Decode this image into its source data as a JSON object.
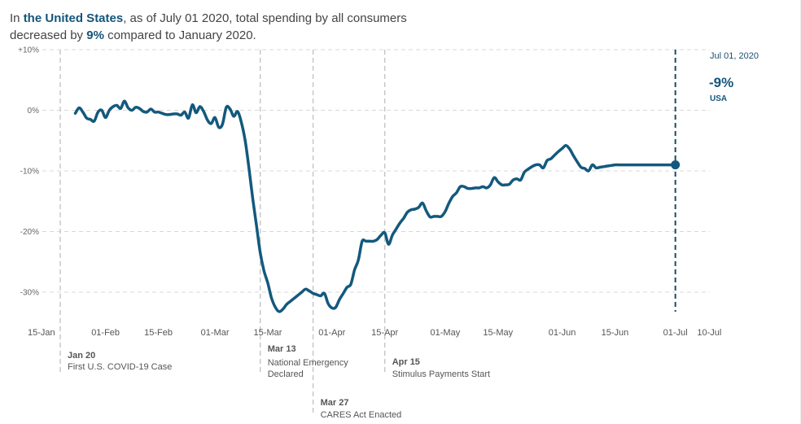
{
  "headline": {
    "prefix": "In ",
    "region": "the United States",
    "middle": ", as of July 01 2020, total spending by all consumers",
    "line2_prefix": "decreased by ",
    "change": "9%",
    "line2_suffix": " compared to January 2020."
  },
  "chart_data": {
    "type": "line",
    "title": "Total spending by all consumers, change vs January 2020",
    "xlabel": "",
    "ylabel": "",
    "ylim": [
      -36,
      10
    ],
    "y_ticks": [
      10,
      0,
      -10,
      -20,
      -30
    ],
    "y_tick_labels": [
      "+10%",
      "0%",
      "-10%",
      "-20%",
      "-30%"
    ],
    "x_range_days_from_jan20": [
      -5,
      172
    ],
    "x_ticks": [
      {
        "day": -5,
        "label": "15-Jan"
      },
      {
        "day": 12,
        "label": "01-Feb"
      },
      {
        "day": 26,
        "label": "15-Feb"
      },
      {
        "day": 41,
        "label": "01-Mar"
      },
      {
        "day": 55,
        "label": "15-Mar"
      },
      {
        "day": 72,
        "label": "01-Apr"
      },
      {
        "day": 86,
        "label": "15-Apr"
      },
      {
        "day": 102,
        "label": "01-May"
      },
      {
        "day": 116,
        "label": "15-May"
      },
      {
        "day": 133,
        "label": "01-Jun"
      },
      {
        "day": 147,
        "label": "15-Jun"
      },
      {
        "day": 163,
        "label": "01-Jul"
      },
      {
        "day": 172,
        "label": "10-Jul"
      }
    ],
    "grid": true,
    "legend": "none",
    "series": [
      {
        "name": "USA",
        "color": "#13597d",
        "x_days_from_jan20": [
          4,
          5,
          6,
          7,
          8,
          9,
          10,
          11,
          12,
          13,
          14,
          15,
          16,
          17,
          18,
          19,
          20,
          21,
          22,
          23,
          24,
          25,
          26,
          27,
          28,
          29,
          30,
          31,
          32,
          33,
          34,
          35,
          36,
          37,
          38,
          39,
          40,
          41,
          42,
          43,
          44,
          45,
          46,
          47,
          48,
          49,
          50,
          51,
          52,
          53,
          54,
          55,
          56,
          57,
          58,
          59,
          60,
          61,
          62,
          63,
          64,
          65,
          66,
          67,
          68,
          69,
          70,
          71,
          72,
          73,
          74,
          75,
          76,
          77,
          78,
          79,
          80,
          81,
          82,
          83,
          84,
          85,
          86,
          87,
          88,
          89,
          90,
          91,
          92,
          93,
          94,
          95,
          96,
          97,
          98,
          99,
          100,
          101,
          102,
          103,
          104,
          105,
          106,
          107,
          108,
          109,
          110,
          111,
          112,
          113,
          114,
          115,
          116,
          117,
          118,
          119,
          120,
          121,
          122,
          123,
          124,
          125,
          126,
          127,
          128,
          129,
          130,
          131,
          132,
          133,
          134,
          135,
          136,
          137,
          138,
          139,
          140,
          141,
          142,
          143,
          144,
          145,
          146,
          147,
          148,
          149,
          150,
          151,
          152,
          153,
          154,
          155,
          156,
          157,
          158,
          159,
          160,
          161,
          162,
          163
        ],
        "values": [
          -0.5,
          0.4,
          -0.3,
          -1.3,
          -1.5,
          -1.8,
          -0.3,
          0.0,
          -1.2,
          0.0,
          0.6,
          0.8,
          0.3,
          1.5,
          0.4,
          0.0,
          0.5,
          0.3,
          -0.2,
          -0.3,
          0.2,
          -0.3,
          -0.3,
          -0.5,
          -0.7,
          -0.7,
          -0.6,
          -0.6,
          -0.8,
          -0.3,
          -1.3,
          0.9,
          -0.4,
          0.6,
          -0.2,
          -1.6,
          -2.2,
          -1.2,
          -2.8,
          -2.3,
          0.5,
          0.2,
          -1.0,
          -0.2,
          -2.0,
          -5.0,
          -9.5,
          -14.5,
          -19.0,
          -23.5,
          -26.5,
          -28.5,
          -31.0,
          -32.5,
          -33.2,
          -32.8,
          -32.0,
          -31.5,
          -31.0,
          -30.5,
          -30.0,
          -29.5,
          -29.8,
          -30.2,
          -30.4,
          -30.6,
          -30.2,
          -31.9,
          -32.6,
          -32.5,
          -31.2,
          -30.2,
          -29.2,
          -28.7,
          -26.3,
          -24.7,
          -21.6,
          -21.6,
          -21.6,
          -21.6,
          -21.3,
          -20.6,
          -20.2,
          -22.1,
          -20.6,
          -19.6,
          -18.6,
          -17.8,
          -16.8,
          -16.4,
          -16.3,
          -16.0,
          -15.3,
          -16.6,
          -17.6,
          -17.5,
          -17.5,
          -17.5,
          -16.7,
          -15.3,
          -14.2,
          -13.6,
          -12.6,
          -12.6,
          -12.9,
          -12.9,
          -12.8,
          -12.8,
          -12.6,
          -12.8,
          -12.3,
          -11.1,
          -11.8,
          -12.3,
          -12.3,
          -12.2,
          -11.5,
          -11.3,
          -11.5,
          -10.2,
          -9.7,
          -9.3,
          -9.0,
          -9.0,
          -9.5,
          -8.3,
          -8.0,
          -7.4,
          -6.8,
          -6.3,
          -5.8,
          -6.4,
          -7.5,
          -8.5,
          -9.4,
          -9.6,
          -10.0,
          -9.0,
          -9.5,
          -9.4,
          -9.3,
          -9.2,
          -9.1,
          -9.0,
          -9.0,
          -9.0,
          -9.0,
          -9.0,
          -9.0,
          -9.0,
          -9.0,
          -9.0,
          -9.0,
          -9.0,
          -9.0,
          -9.0,
          -9.0,
          -9.0,
          -9.0,
          -9.0,
          -9.0,
          -9.0,
          -9.0
        ]
      }
    ],
    "annotations": [
      {
        "day": 0,
        "date": "Jan 20",
        "text": [
          "First U.S. COVID-19 Case"
        ]
      },
      {
        "day": 53,
        "date": "Mar 13",
        "text": [
          "National Emergency",
          "Declared"
        ]
      },
      {
        "day": 67,
        "date": "Mar 27",
        "text": [
          "CARES Act Enacted"
        ]
      },
      {
        "day": 86,
        "date": "Apr 15",
        "text": [
          "Stimulus Payments Start"
        ]
      }
    ],
    "current": {
      "day": 163,
      "date": "Jul 01, 2020",
      "value_label": "-9%",
      "value": -9,
      "region": "USA"
    }
  }
}
